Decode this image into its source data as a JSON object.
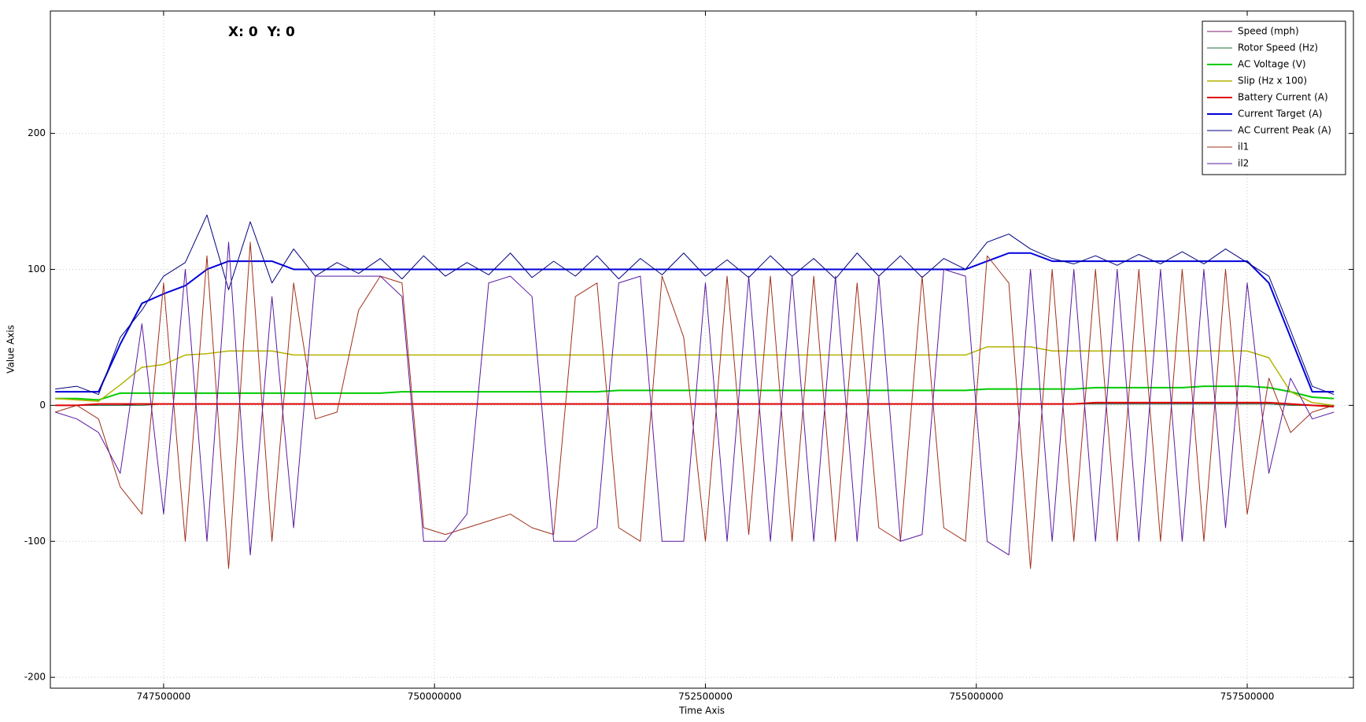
{
  "chart_data": {
    "type": "line",
    "readout": "X: 0  Y: 0",
    "x_label": "Time Axis",
    "y_label": "Value Axis",
    "legend": "upper right",
    "grid": true,
    "xlim": [
      746455000,
      758480000
    ],
    "ylim": [
      -208,
      290
    ],
    "xticks": [
      747500000,
      750000000,
      752500000,
      755000000,
      757500000
    ],
    "yticks": [
      -200,
      -100,
      0,
      100,
      200
    ],
    "x": [
      746500000,
      746700000,
      746900000,
      747100000,
      747300000,
      747500000,
      747700000,
      747900000,
      748100000,
      748300000,
      748500000,
      748700000,
      748900000,
      749100000,
      749300000,
      749500000,
      749700000,
      749900000,
      750100000,
      750300000,
      750500000,
      750700000,
      750900000,
      751100000,
      751300000,
      751500000,
      751700000,
      751900000,
      752100000,
      752300000,
      752500000,
      752700000,
      752900000,
      753100000,
      753300000,
      753500000,
      753700000,
      753900000,
      754100000,
      754300000,
      754500000,
      754700000,
      754900000,
      755100000,
      755300000,
      755500000,
      755700000,
      755900000,
      756100000,
      756300000,
      756500000,
      756700000,
      756900000,
      757100000,
      757300000,
      757500000,
      757700000,
      757900000,
      758100000,
      758300000
    ],
    "series": [
      {
        "name": "Speed (mph)",
        "color": "#7b1f6e",
        "line_width": 1,
        "values": [
          0,
          0,
          0,
          0,
          1,
          1,
          1,
          1,
          1,
          1,
          1,
          1,
          1,
          1,
          1,
          1,
          1,
          1,
          1,
          1,
          1,
          1,
          1,
          1,
          1,
          1,
          1,
          1,
          1,
          1,
          1,
          1,
          1,
          1,
          1,
          1,
          1,
          1,
          1,
          1,
          1,
          1,
          1,
          1,
          1,
          1,
          1,
          1,
          1,
          1,
          1,
          1,
          1,
          1,
          1,
          1,
          1,
          0,
          0,
          0
        ]
      },
      {
        "name": "Rotor Speed (Hz)",
        "color": "#1f6e3a",
        "line_width": 1,
        "values": [
          0,
          0,
          0,
          0,
          0,
          1,
          1,
          1,
          1,
          1,
          1,
          1,
          1,
          1,
          1,
          1,
          1,
          1,
          1,
          1,
          1,
          1,
          1,
          1,
          1,
          1,
          1,
          1,
          1,
          1,
          1,
          1,
          1,
          1,
          1,
          1,
          1,
          1,
          1,
          1,
          1,
          1,
          1,
          1,
          1,
          1,
          1,
          1,
          1,
          1,
          1,
          1,
          1,
          1,
          1,
          1,
          1,
          0,
          0,
          0
        ]
      },
      {
        "name": "AC Voltage (V)",
        "color": "#00cc00",
        "line_width": 2,
        "values": [
          5,
          5,
          4,
          9,
          9,
          9,
          9,
          9,
          9,
          9,
          9,
          9,
          9,
          9,
          9,
          9,
          10,
          10,
          10,
          10,
          10,
          10,
          10,
          10,
          10,
          10,
          11,
          11,
          11,
          11,
          11,
          11,
          11,
          11,
          11,
          11,
          11,
          11,
          11,
          11,
          11,
          11,
          11,
          12,
          12,
          12,
          12,
          12,
          13,
          13,
          13,
          13,
          13,
          14,
          14,
          14,
          13,
          10,
          6,
          5
        ]
      },
      {
        "name": "Slip (Hz x 100)",
        "color": "#b3b300",
        "line_width": 1.5,
        "values": [
          5,
          4,
          3,
          15,
          28,
          30,
          37,
          38,
          40,
          40,
          40,
          37,
          37,
          37,
          37,
          37,
          37,
          37,
          37,
          37,
          37,
          37,
          37,
          37,
          37,
          37,
          37,
          37,
          37,
          37,
          37,
          37,
          37,
          37,
          37,
          37,
          37,
          37,
          37,
          37,
          37,
          37,
          37,
          43,
          43,
          43,
          40,
          40,
          40,
          40,
          40,
          40,
          40,
          40,
          40,
          40,
          35,
          10,
          2,
          0
        ]
      },
      {
        "name": "Battery Current (A)",
        "color": "#e00000",
        "line_width": 2,
        "values": [
          0,
          0,
          1,
          1,
          1,
          1,
          1,
          1,
          1,
          1,
          1,
          1,
          1,
          1,
          1,
          1,
          1,
          1,
          1,
          1,
          1,
          1,
          1,
          1,
          1,
          1,
          1,
          1,
          1,
          1,
          1,
          1,
          1,
          1,
          1,
          1,
          1,
          1,
          1,
          1,
          1,
          1,
          1,
          1,
          1,
          1,
          1,
          1,
          2,
          2,
          2,
          2,
          2,
          2,
          2,
          2,
          2,
          1,
          0,
          -1
        ]
      },
      {
        "name": "Current Target (A)",
        "color": "#0000dd",
        "line_width": 2,
        "values": [
          10,
          10,
          10,
          45,
          75,
          82,
          88,
          100,
          106,
          106,
          106,
          100,
          100,
          100,
          100,
          100,
          100,
          100,
          100,
          100,
          100,
          100,
          100,
          100,
          100,
          100,
          100,
          100,
          100,
          100,
          100,
          100,
          100,
          100,
          100,
          100,
          100,
          100,
          100,
          100,
          100,
          100,
          100,
          106,
          112,
          112,
          106,
          106,
          106,
          106,
          106,
          106,
          106,
          106,
          106,
          106,
          90,
          50,
          10,
          10
        ]
      },
      {
        "name": "AC Current Peak (A)",
        "color": "#000080",
        "line_width": 1,
        "values": [
          12,
          14,
          8,
          50,
          70,
          95,
          105,
          140,
          85,
          135,
          90,
          115,
          95,
          105,
          97,
          108,
          93,
          110,
          95,
          105,
          96,
          112,
          94,
          106,
          95,
          110,
          93,
          108,
          96,
          112,
          95,
          107,
          94,
          110,
          95,
          108,
          93,
          112,
          95,
          110,
          94,
          108,
          100,
          120,
          126,
          115,
          108,
          104,
          110,
          103,
          111,
          104,
          113,
          104,
          115,
          105,
          95,
          55,
          14,
          8
        ]
      },
      {
        "name": "il1",
        "color": "#a0301a",
        "line_width": 1,
        "values": [
          -5,
          0,
          -10,
          -60,
          -80,
          90,
          -100,
          110,
          -120,
          120,
          -100,
          90,
          -10,
          -5,
          70,
          95,
          90,
          -90,
          -95,
          -90,
          -85,
          -80,
          -90,
          -95,
          80,
          90,
          -90,
          -100,
          95,
          50,
          -100,
          95,
          -95,
          95,
          -100,
          95,
          -100,
          90,
          -90,
          -100,
          95,
          -90,
          -100,
          110,
          90,
          -120,
          100,
          -100,
          100,
          -100,
          100,
          -100,
          100,
          -100,
          100,
          -80,
          20,
          -20,
          -5,
          0
        ]
      },
      {
        "name": "il2",
        "color": "#5a1aa0",
        "line_width": 1,
        "values": [
          -5,
          -10,
          -20,
          -50,
          60,
          -80,
          100,
          -100,
          120,
          -110,
          80,
          -90,
          95,
          95,
          95,
          95,
          80,
          -100,
          -100,
          -80,
          90,
          95,
          80,
          -100,
          -100,
          -90,
          90,
          95,
          -100,
          -100,
          90,
          -100,
          95,
          -100,
          95,
          -100,
          95,
          -100,
          95,
          -100,
          -95,
          100,
          95,
          -100,
          -110,
          100,
          -100,
          100,
          -100,
          100,
          -100,
          100,
          -100,
          100,
          -90,
          90,
          -50,
          20,
          -10,
          -5
        ]
      }
    ]
  }
}
